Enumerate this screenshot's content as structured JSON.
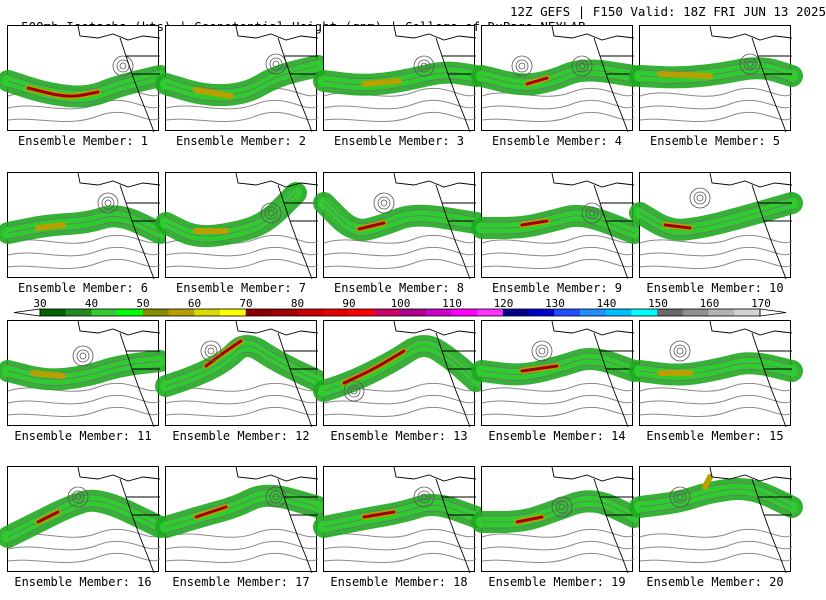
{
  "header": {
    "title": "500mb Isotachs (kts) | Geopotential Height (gpm) | College of DuPage NEXLAB",
    "run": "12Z GEFS | F150 Valid: 18Z FRI JUN 13 2025"
  },
  "panels": [
    {
      "label": "Ensemble Member: 1",
      "jet": [
        [
          0,
          55
        ],
        [
          40,
          68
        ],
        [
          80,
          72
        ],
        [
          110,
          60
        ],
        [
          152,
          50
        ]
      ],
      "core": [
        [
          20,
          62
        ],
        [
          60,
          72
        ],
        [
          90,
          66
        ]
      ],
      "max": 2,
      "low": [
        [
          115,
          40
        ]
      ]
    },
    {
      "label": "Ensemble Member: 2",
      "jet": [
        [
          0,
          58
        ],
        [
          40,
          70
        ],
        [
          80,
          68
        ],
        [
          110,
          50
        ],
        [
          152,
          40
        ]
      ],
      "core": [
        [
          30,
          64
        ],
        [
          65,
          70
        ]
      ],
      "max": 1,
      "low": [
        [
          110,
          38
        ]
      ]
    },
    {
      "label": "Ensemble Member: 3",
      "jet": [
        [
          0,
          55
        ],
        [
          40,
          60
        ],
        [
          80,
          55
        ],
        [
          120,
          45
        ],
        [
          152,
          50
        ]
      ],
      "core": [
        [
          40,
          58
        ],
        [
          75,
          55
        ]
      ],
      "max": 1,
      "low": [
        [
          100,
          40
        ]
      ]
    },
    {
      "label": "Ensemble Member: 4",
      "jet": [
        [
          0,
          50
        ],
        [
          40,
          60
        ],
        [
          70,
          55
        ],
        [
          100,
          42
        ],
        [
          152,
          50
        ]
      ],
      "core": [
        [
          45,
          58
        ],
        [
          65,
          52
        ]
      ],
      "max": 2,
      "low": [
        [
          100,
          40
        ],
        [
          40,
          40
        ]
      ]
    },
    {
      "label": "Ensemble Member: 5",
      "jet": [
        [
          0,
          50
        ],
        [
          40,
          52
        ],
        [
          80,
          48
        ],
        [
          120,
          40
        ],
        [
          152,
          50
        ]
      ],
      "core": [
        [
          20,
          48
        ],
        [
          70,
          50
        ]
      ],
      "max": 1,
      "low": [
        [
          110,
          38
        ]
      ]
    },
    {
      "label": "Ensemble Member: 6",
      "jet": [
        [
          0,
          60
        ],
        [
          40,
          52
        ],
        [
          80,
          50
        ],
        [
          110,
          40
        ],
        [
          152,
          60
        ]
      ],
      "core": [
        [
          30,
          55
        ],
        [
          55,
          52
        ]
      ],
      "max": 1,
      "low": [
        [
          100,
          30
        ]
      ]
    },
    {
      "label": "Ensemble Member: 7",
      "jet": [
        [
          0,
          50
        ],
        [
          30,
          65
        ],
        [
          70,
          60
        ],
        [
          100,
          50
        ],
        [
          130,
          20
        ]
      ],
      "core": [
        [
          30,
          58
        ],
        [
          60,
          58
        ]
      ],
      "max": 1,
      "low": [
        [
          105,
          40
        ]
      ]
    },
    {
      "label": "Ensemble Member: 8",
      "jet": [
        [
          0,
          30
        ],
        [
          30,
          60
        ],
        [
          60,
          52
        ],
        [
          90,
          40
        ],
        [
          152,
          50
        ]
      ],
      "core": [
        [
          35,
          56
        ],
        [
          60,
          50
        ]
      ],
      "max": 2,
      "low": [
        [
          60,
          30
        ]
      ]
    },
    {
      "label": "Ensemble Member: 9",
      "jet": [
        [
          0,
          55
        ],
        [
          40,
          55
        ],
        [
          70,
          48
        ],
        [
          100,
          40
        ],
        [
          152,
          60
        ]
      ],
      "core": [
        [
          40,
          52
        ],
        [
          65,
          48
        ]
      ],
      "max": 2,
      "low": [
        [
          110,
          40
        ]
      ]
    },
    {
      "label": "Ensemble Member: 10",
      "jet": [
        [
          0,
          40
        ],
        [
          30,
          58
        ],
        [
          60,
          55
        ],
        [
          100,
          45
        ],
        [
          152,
          30
        ]
      ],
      "core": [
        [
          25,
          52
        ],
        [
          50,
          55
        ]
      ],
      "max": 2,
      "low": [
        [
          60,
          25
        ]
      ]
    },
    {
      "label": "Ensemble Member: 11",
      "jet": [
        [
          0,
          50
        ],
        [
          40,
          60
        ],
        [
          80,
          55
        ],
        [
          110,
          45
        ],
        [
          152,
          40
        ]
      ],
      "core": [
        [
          25,
          52
        ],
        [
          55,
          55
        ]
      ],
      "max": 1,
      "low": [
        [
          75,
          35
        ]
      ]
    },
    {
      "label": "Ensemble Member: 12",
      "jet": [
        [
          0,
          65
        ],
        [
          30,
          55
        ],
        [
          60,
          40
        ],
        [
          80,
          20
        ],
        [
          110,
          40
        ],
        [
          152,
          60
        ]
      ],
      "core": [
        [
          40,
          45
        ],
        [
          60,
          30
        ],
        [
          75,
          20
        ]
      ],
      "max": 2,
      "low": [
        [
          45,
          30
        ]
      ]
    },
    {
      "label": "Ensemble Member: 13",
      "jet": [
        [
          0,
          70
        ],
        [
          30,
          60
        ],
        [
          70,
          40
        ],
        [
          100,
          20
        ],
        [
          130,
          40
        ],
        [
          152,
          60
        ]
      ],
      "core": [
        [
          20,
          62
        ],
        [
          50,
          48
        ],
        [
          80,
          30
        ]
      ],
      "max": 2,
      "low": [
        [
          30,
          70
        ]
      ]
    },
    {
      "label": "Ensemble Member: 14",
      "jet": [
        [
          0,
          50
        ],
        [
          40,
          55
        ],
        [
          80,
          45
        ],
        [
          110,
          35
        ],
        [
          152,
          50
        ]
      ],
      "core": [
        [
          40,
          50
        ],
        [
          75,
          45
        ]
      ],
      "max": 2,
      "low": [
        [
          60,
          30
        ]
      ]
    },
    {
      "label": "Ensemble Member: 15",
      "jet": [
        [
          0,
          50
        ],
        [
          40,
          55
        ],
        [
          80,
          48
        ],
        [
          110,
          40
        ],
        [
          152,
          50
        ]
      ],
      "core": [
        [
          20,
          52
        ],
        [
          50,
          52
        ]
      ],
      "max": 1,
      "low": [
        [
          40,
          30
        ]
      ]
    },
    {
      "label": "Ensemble Member: 16",
      "jet": [
        [
          0,
          70
        ],
        [
          30,
          55
        ],
        [
          60,
          40
        ],
        [
          90,
          30
        ],
        [
          152,
          60
        ]
      ],
      "core": [
        [
          30,
          55
        ],
        [
          50,
          45
        ]
      ],
      "max": 2,
      "low": [
        [
          70,
          30
        ]
      ]
    },
    {
      "label": "Ensemble Member: 17",
      "jet": [
        [
          0,
          60
        ],
        [
          40,
          48
        ],
        [
          70,
          40
        ],
        [
          100,
          25
        ],
        [
          152,
          40
        ]
      ],
      "core": [
        [
          30,
          50
        ],
        [
          60,
          40
        ]
      ],
      "max": 2,
      "low": [
        [
          110,
          30
        ]
      ]
    },
    {
      "label": "Ensemble Member: 18",
      "jet": [
        [
          0,
          60
        ],
        [
          40,
          52
        ],
        [
          80,
          45
        ],
        [
          110,
          35
        ],
        [
          152,
          50
        ]
      ],
      "core": [
        [
          40,
          50
        ],
        [
          70,
          45
        ]
      ],
      "max": 2,
      "low": [
        [
          100,
          30
        ]
      ]
    },
    {
      "label": "Ensemble Member: 19",
      "jet": [
        [
          0,
          55
        ],
        [
          40,
          55
        ],
        [
          70,
          45
        ],
        [
          110,
          30
        ],
        [
          152,
          50
        ]
      ],
      "core": [
        [
          35,
          55
        ],
        [
          60,
          50
        ]
      ],
      "max": 2,
      "low": [
        [
          80,
          40
        ]
      ]
    },
    {
      "label": "Ensemble Member: 20",
      "jet": [
        [
          0,
          40
        ],
        [
          40,
          35
        ],
        [
          70,
          25
        ],
        [
          110,
          20
        ],
        [
          152,
          40
        ]
      ],
      "core": [
        [
          65,
          20
        ],
        [
          70,
          10
        ]
      ],
      "max": 1,
      "low": [
        [
          40,
          30
        ]
      ]
    }
  ],
  "colorbar": {
    "labels": [
      "30",
      "40",
      "50",
      "60",
      "70",
      "80",
      "90",
      "100",
      "110",
      "120",
      "130",
      "140",
      "150",
      "160",
      "170"
    ],
    "colors": [
      "#006400",
      "#228b22",
      "#32cd32",
      "#00ff00",
      "#8b8b00",
      "#b8a000",
      "#dada00",
      "#ffff00",
      "#8b0000",
      "#a00000",
      "#c80000",
      "#e60000",
      "#ff0000",
      "#cc0066",
      "#b0008b",
      "#cc00cc",
      "#ff00ff",
      "#ff33ff",
      "#00008b",
      "#0000cd",
      "#1e50ff",
      "#1e90ff",
      "#00bfff",
      "#00ffff",
      "#696969",
      "#909090",
      "#b4b4b4",
      "#d3d3d3"
    ]
  }
}
